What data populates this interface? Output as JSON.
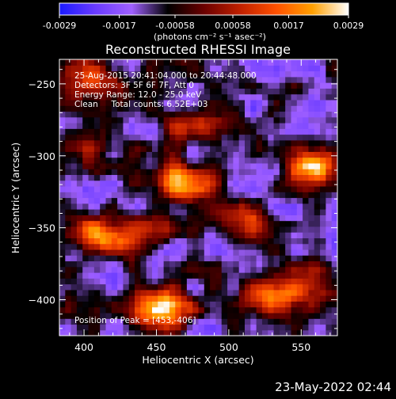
{
  "chart_data": {
    "type": "heatmap",
    "title": "Reconstructed RHESSI Image",
    "colorbar": {
      "ticks": [
        "-0.0029",
        "-0.0017",
        "-0.00058",
        "0.00058",
        "0.0017",
        "0.0029"
      ],
      "range": [
        -0.0029,
        0.0029
      ],
      "unit_text": "(photons cm⁻² s⁻¹ asec⁻²)",
      "colormap": [
        "#1a1aff",
        "#6a3bff",
        "#a060ff",
        "#000000",
        "#6a0000",
        "#c02000",
        "#ff5000",
        "#ffa000",
        "#ffffff"
      ]
    },
    "xlabel": "Heliocentric X (arcsec)",
    "ylabel": "Heliocentric Y (arcsec)",
    "xlim": [
      383,
      575
    ],
    "ylim": [
      -425,
      -233
    ],
    "xticks": [
      400,
      450,
      500,
      550
    ],
    "yticks": [
      -250,
      -300,
      -350,
      -400
    ],
    "annotations": [
      "25-Aug-2015 20:41:04.000 to 20:44:48.000",
      "Detectors: 3F 5F 6F 7F, Att 0",
      "Energy Range: 12.0 - 25.0 keV",
      "Clean     Total counts: 6.52E+03"
    ],
    "peak_label": "Position of Peak = [453,-406]",
    "peak": {
      "x": 453,
      "y": -406
    },
    "blobs": [
      {
        "x": 453,
        "y": -405,
        "intensity": 0.0029
      },
      {
        "x": 470,
        "y": -318,
        "intensity": 0.0024
      },
      {
        "x": 560,
        "y": -308,
        "intensity": 0.0022
      },
      {
        "x": 410,
        "y": -355,
        "intensity": 0.0021
      },
      {
        "x": 530,
        "y": -395,
        "intensity": 0.0022
      },
      {
        "x": 510,
        "y": -345,
        "intensity": 0.0016
      },
      {
        "x": 475,
        "y": -278,
        "intensity": 0.0014
      },
      {
        "x": 395,
        "y": -293,
        "intensity": 0.0012
      },
      {
        "x": 440,
        "y": -352,
        "intensity": 0.0011
      },
      {
        "x": 405,
        "y": -246,
        "intensity": 0.0012
      },
      {
        "x": 562,
        "y": -393,
        "intensity": 0.0012
      }
    ]
  },
  "footer": {
    "timestamp": "23-May-2022 02:44"
  }
}
